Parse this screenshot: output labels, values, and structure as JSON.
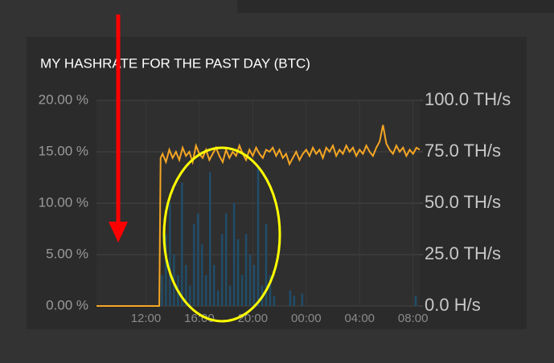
{
  "chart_data": {
    "type": "line",
    "title": "MY HASHRATE FOR THE PAST DAY (BTC)",
    "xlim": [
      8.3,
      32.5
    ],
    "xticks": [
      {
        "value": 12,
        "label": "12:00"
      },
      {
        "value": 16,
        "label": "16:00"
      },
      {
        "value": 20,
        "label": "20:00"
      },
      {
        "value": 24,
        "label": "00:00"
      },
      {
        "value": 28,
        "label": "04:00"
      },
      {
        "value": 32,
        "label": "08:00"
      }
    ],
    "ylim": [
      0,
      20
    ],
    "yticks": [
      {
        "value": 0,
        "label": "0.00 %"
      },
      {
        "value": 5,
        "label": "5.00 %"
      },
      {
        "value": 10,
        "label": "10.00 %"
      },
      {
        "value": 15,
        "label": "15.00 %"
      },
      {
        "value": 20,
        "label": "20.00 %"
      }
    ],
    "y2lim": [
      0,
      100
    ],
    "y2ticks": [
      {
        "value": 0,
        "label": "0.0 H/s"
      },
      {
        "value": 25,
        "label": "25.0 TH/s"
      },
      {
        "value": 50,
        "label": "50.0 TH/s"
      },
      {
        "value": 75,
        "label": "75.0 TH/s"
      },
      {
        "value": 100,
        "label": "100.0 TH/s"
      }
    ],
    "grid": true,
    "series": [
      {
        "type": "line",
        "axis": "y2",
        "color": "#f5a623",
        "x": [
          8.3,
          13.0,
          13.1,
          13.25,
          13.5,
          13.75,
          14,
          14.25,
          14.5,
          14.75,
          15,
          15.25,
          15.5,
          15.75,
          16,
          16.25,
          16.5,
          16.75,
          17,
          17.25,
          17.5,
          17.75,
          18,
          18.25,
          18.5,
          18.75,
          19,
          19.25,
          19.5,
          19.75,
          20,
          20.25,
          20.5,
          20.75,
          21,
          21.25,
          21.5,
          21.75,
          22,
          22.25,
          22.5,
          22.75,
          23,
          23.25,
          23.5,
          23.75,
          24,
          24.25,
          24.5,
          24.75,
          25,
          25.25,
          25.5,
          25.75,
          26,
          26.25,
          26.5,
          26.75,
          27,
          27.25,
          27.5,
          27.75,
          28,
          28.25,
          28.5,
          28.75,
          29,
          29.25,
          29.5,
          29.75,
          30,
          30.25,
          30.5,
          30.75,
          31,
          31.25,
          31.5,
          31.75,
          32,
          32.25,
          32.5
        ],
        "values": [
          0,
          0,
          72,
          74,
          70,
          76,
          72,
          75,
          71,
          77,
          73,
          75,
          70,
          78,
          74,
          72,
          76,
          71,
          74,
          77,
          73,
          70,
          76,
          72,
          75,
          73,
          78,
          74,
          71,
          76,
          73,
          77,
          74,
          72,
          76,
          75,
          77,
          73,
          76,
          72,
          74,
          69,
          72,
          75,
          71,
          74,
          76,
          73,
          77,
          74,
          76,
          72,
          77,
          75,
          78,
          73,
          76,
          74,
          78,
          75,
          77,
          73,
          76,
          74,
          78,
          75,
          73,
          77,
          80,
          88,
          79,
          76,
          74,
          78,
          75,
          77,
          73,
          76,
          74,
          77,
          76
        ]
      },
      {
        "type": "bar",
        "color": "#1f4e6b",
        "x": [
          13.2,
          13.5,
          13.8,
          14.1,
          14.4,
          14.7,
          15.0,
          15.3,
          15.6,
          15.9,
          16.2,
          16.5,
          16.8,
          17.1,
          17.4,
          17.7,
          18.0,
          18.3,
          18.6,
          18.9,
          19.2,
          19.5,
          19.8,
          20.1,
          20.4,
          20.7,
          21.0,
          21.3,
          21.6,
          22.8,
          23.1,
          23.7,
          32.2
        ],
        "values": [
          3,
          7,
          10,
          5,
          3,
          12,
          4,
          2,
          8,
          9,
          6,
          3,
          13,
          4,
          1.5,
          7,
          9,
          2,
          10,
          6.5,
          3,
          7,
          5,
          4,
          13.5,
          2,
          8,
          3,
          1,
          1.5,
          1,
          1.2,
          1
        ]
      }
    ]
  }
}
